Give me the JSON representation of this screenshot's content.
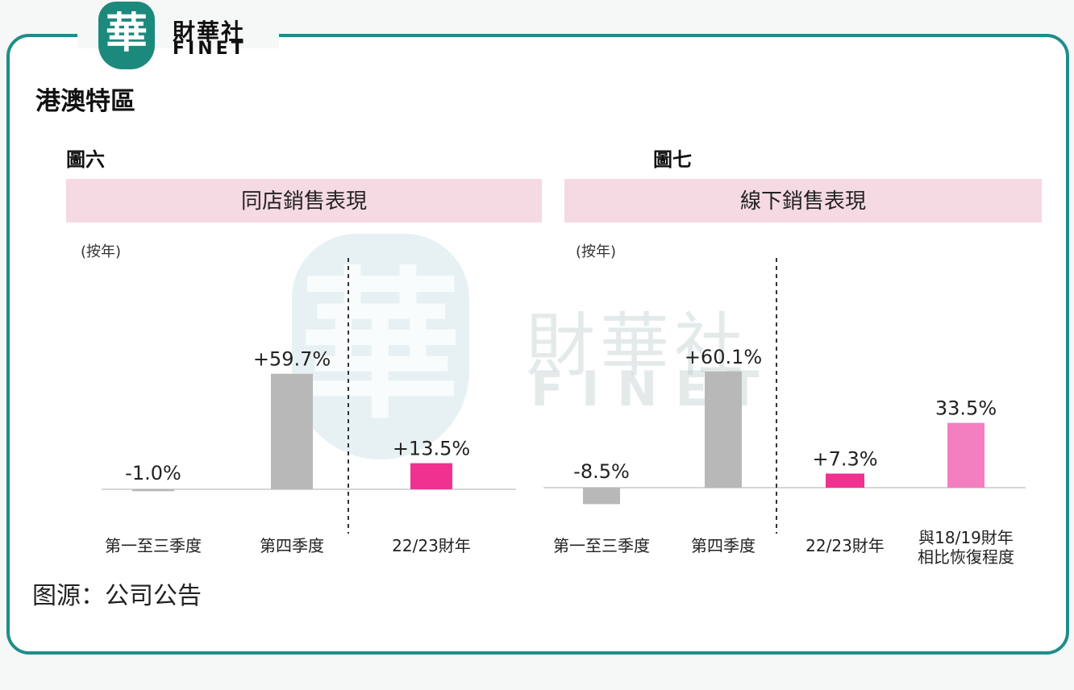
{
  "logo": {
    "seal_char": "華",
    "name_cn": "財華社",
    "name_en": "FINET"
  },
  "watermark": {
    "seal_char": "華",
    "name_cn": "財華社",
    "name_en": "FINET"
  },
  "section_title": "港澳特區",
  "source": "图源：公司公告",
  "colors": {
    "frame": "#1e8d8a",
    "gray_bar": "#b8b8b8",
    "pink_bar": "#f0318f",
    "light_pink_bar": "#f37fc0",
    "banner": "#f5d9e3"
  },
  "chart_data": [
    {
      "type": "bar",
      "figure_label": "圖六",
      "title": "同店銷售表現",
      "unit": "(按年)",
      "categories": [
        "第一至三季度",
        "第四季度",
        "22/23財年"
      ],
      "values": [
        -1.0,
        59.7,
        13.5
      ],
      "value_labels": [
        "-1.0%",
        "+59.7%",
        "+13.5%"
      ],
      "bar_colors": [
        "#b8b8b8",
        "#b8b8b8",
        "#f0318f"
      ],
      "divider_after_index": 1
    },
    {
      "type": "bar",
      "figure_label": "圖七",
      "title": "線下銷售表現",
      "unit": "(按年)",
      "categories": [
        "第一至三季度",
        "第四季度",
        "22/23財年",
        "與18/19財年\n相比恢復程度"
      ],
      "values": [
        -8.5,
        60.1,
        7.3,
        33.5
      ],
      "value_labels": [
        "-8.5%",
        "+60.1%",
        "+7.3%",
        "33.5%"
      ],
      "bar_colors": [
        "#b8b8b8",
        "#b8b8b8",
        "#f0318f",
        "#f37fc0"
      ],
      "divider_after_index": 1
    }
  ]
}
